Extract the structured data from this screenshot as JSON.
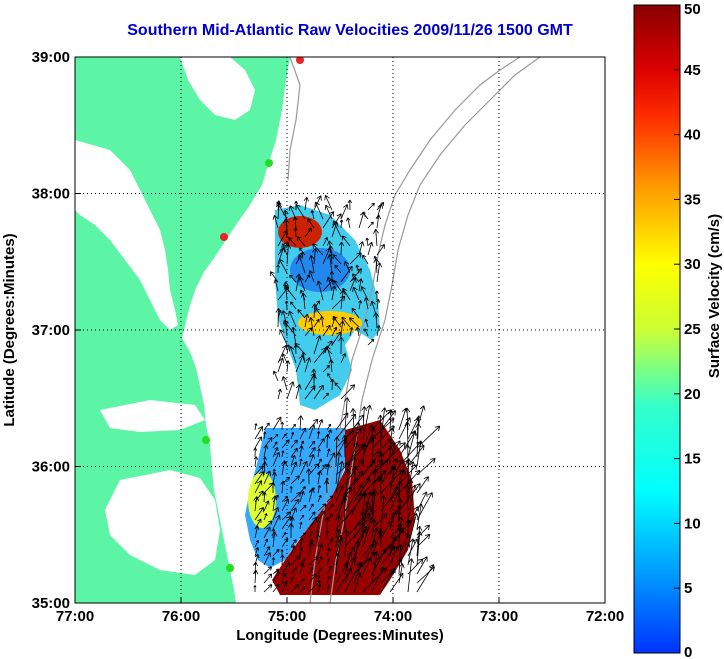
{
  "title": "Southern Mid-Atlantic Raw Velocities 2009/11/26 1500 GMT",
  "xlabel": "Longitude (Degrees:Minutes)",
  "ylabel": "Latitude (Degrees:Minutes)",
  "x_ticks": [
    "77:00",
    "76:00",
    "75:00",
    "74:00",
    "73:00",
    "72:00"
  ],
  "y_ticks": [
    "39:00",
    "38:00",
    "37:00",
    "36:00",
    "35:00"
  ],
  "colorbar": {
    "label": "Surface Velocity (cm/s)",
    "ticks": [
      "50",
      "45",
      "40",
      "35",
      "30",
      "25",
      "20",
      "15",
      "10",
      "5",
      "0"
    ],
    "range": [
      0,
      50
    ]
  },
  "colors": {
    "land": "#5cf5a6",
    "ocean": "#ffffff",
    "title": "#0000cc",
    "station_green": "#22dd22",
    "station_red": "#ee2222",
    "bathymetry": "#9a9a9a",
    "vector": "#000000"
  },
  "chart_data": {
    "type": "map",
    "xlim_deg_west": [
      77,
      72
    ],
    "ylim_deg_north": [
      35,
      39
    ],
    "grid": true,
    "stations": [
      {
        "lon": -74.85,
        "lat": 39.0,
        "status": "red"
      },
      {
        "lon": -74.95,
        "lat": 38.2,
        "status": "green"
      },
      {
        "lon": -75.5,
        "lat": 37.7,
        "status": "red"
      },
      {
        "lon": -75.75,
        "lat": 36.2,
        "status": "green"
      },
      {
        "lon": -75.5,
        "lat": 35.25,
        "status": "green"
      }
    ]
  }
}
